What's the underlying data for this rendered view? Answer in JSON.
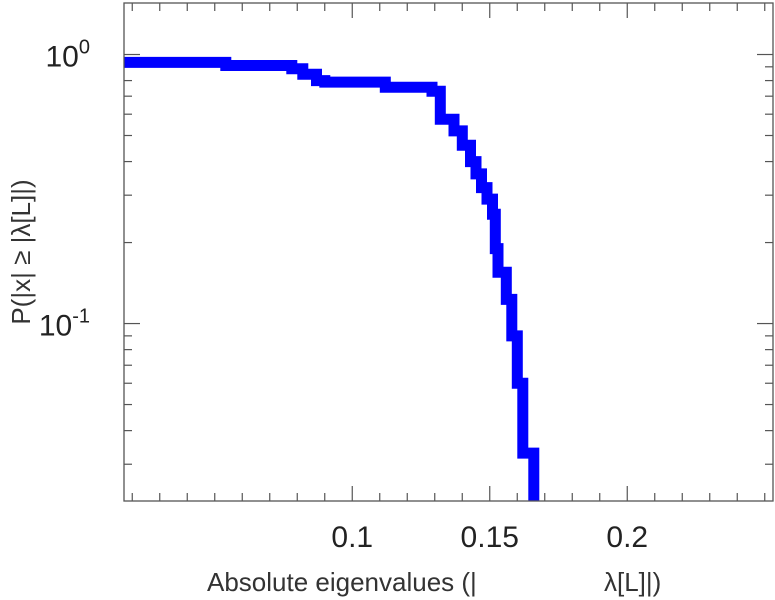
{
  "chart_data": {
    "type": "line",
    "xlabel_parts": [
      "Absolute eigenvalues (|",
      "λ[L]|)"
    ],
    "ylabel": "P(|x|  ≥ |λ[L]|)",
    "xlim": [
      0.017,
      0.253
    ],
    "ylim": [
      0.0219,
      1.554
    ],
    "yscale": "log",
    "grid": false,
    "legend": "none",
    "xticks": [
      {
        "value": 0.1,
        "label": "0.1"
      },
      {
        "value": 0.15,
        "label": "0.15"
      },
      {
        "value": 0.2,
        "label": "0.2"
      }
    ],
    "yticks": [
      {
        "value": 1,
        "base": "10",
        "exp": "0"
      },
      {
        "value": 0.1,
        "base": "10",
        "exp": "-1"
      }
    ],
    "series": [
      {
        "color": "#0000ff",
        "x": [
          0.017,
          0.054,
          0.054,
          0.078,
          0.078,
          0.082,
          0.082,
          0.087,
          0.087,
          0.09,
          0.09,
          0.112,
          0.112,
          0.129,
          0.129,
          0.132,
          0.132,
          0.137,
          0.137,
          0.14,
          0.14,
          0.143,
          0.143,
          0.145,
          0.145,
          0.147,
          0.147,
          0.149,
          0.149,
          0.151,
          0.151,
          0.152,
          0.152,
          0.153,
          0.153,
          0.156,
          0.156,
          0.158,
          0.158,
          0.16,
          0.16,
          0.162,
          0.162,
          0.164,
          0.164,
          0.166,
          0.166
        ],
        "y": [
          0.935,
          0.935,
          0.91,
          0.91,
          0.885,
          0.885,
          0.845,
          0.845,
          0.8,
          0.8,
          0.79,
          0.79,
          0.755,
          0.755,
          0.73,
          0.73,
          0.575,
          0.575,
          0.52,
          0.52,
          0.46,
          0.46,
          0.4,
          0.4,
          0.36,
          0.36,
          0.32,
          0.32,
          0.29,
          0.29,
          0.255,
          0.255,
          0.19,
          0.19,
          0.155,
          0.155,
          0.123,
          0.123,
          0.09,
          0.09,
          0.06,
          0.06,
          0.033,
          0.033,
          0.033,
          0.033,
          0.0219
        ]
      }
    ]
  }
}
